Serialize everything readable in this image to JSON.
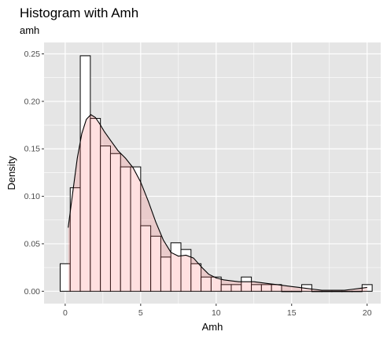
{
  "chart_data": {
    "type": "bar",
    "title": "Histogram with Amh",
    "subtitle": "amh",
    "xlabel": "Amh",
    "ylabel": "Density",
    "xlim": [
      -1.4,
      20.9
    ],
    "ylim": [
      -0.013,
      0.262
    ],
    "x_ticks": [
      "0",
      "5",
      "10",
      "15",
      "20"
    ],
    "x_tick_values": [
      0,
      5,
      10,
      15,
      20
    ],
    "y_ticks": [
      "0.00",
      "0.05",
      "0.10",
      "0.15",
      "0.20",
      "0.25"
    ],
    "y_tick_values": [
      0,
      0.05,
      0.1,
      0.15,
      0.2,
      0.25
    ],
    "grid": true,
    "bin_width": 0.667,
    "histogram": {
      "bin_centers": [
        0,
        0.667,
        1.333,
        2,
        2.667,
        3.333,
        4,
        4.667,
        5.333,
        6,
        6.667,
        7.333,
        8,
        8.667,
        9.333,
        10,
        10.667,
        11.333,
        12,
        12.667,
        13.333,
        14,
        14.667,
        15.333,
        16,
        16.667,
        17.333,
        18,
        18.667,
        19.333,
        20
      ],
      "density": [
        0.029,
        0.109,
        0.248,
        0.182,
        0.153,
        0.145,
        0.131,
        0.131,
        0.069,
        0.058,
        0.036,
        0.051,
        0.044,
        0.029,
        0.015,
        0.015,
        0.007,
        0.007,
        0.015,
        0.007,
        0.007,
        0.007,
        0.0,
        0.0,
        0.007,
        0.0,
        0.0,
        0.0,
        0.0,
        0.0,
        0.007
      ]
    },
    "density_curve": {
      "x": [
        0.2,
        0.5,
        0.8,
        1.1,
        1.4,
        1.7,
        2.0,
        2.3,
        2.6,
        3.0,
        3.5,
        4.0,
        4.5,
        5.0,
        5.5,
        6.0,
        6.5,
        7.0,
        7.5,
        8.0,
        8.5,
        9.0,
        9.5,
        10.0,
        10.5,
        11.0,
        11.5,
        12.0,
        12.5,
        13.0,
        13.5,
        14.0,
        14.5,
        15.0,
        15.5,
        16.0,
        16.5,
        17.0,
        17.5,
        18.0,
        18.5,
        19.0,
        19.5,
        20.0
      ],
      "y": [
        0.067,
        0.104,
        0.14,
        0.166,
        0.181,
        0.186,
        0.183,
        0.176,
        0.168,
        0.159,
        0.148,
        0.14,
        0.13,
        0.115,
        0.095,
        0.073,
        0.054,
        0.041,
        0.037,
        0.038,
        0.035,
        0.026,
        0.018,
        0.014,
        0.012,
        0.011,
        0.01,
        0.01,
        0.01,
        0.009,
        0.008,
        0.007,
        0.006,
        0.005,
        0.004,
        0.003,
        0.002,
        0.001,
        0.001,
        0.001,
        0.001,
        0.002,
        0.003,
        0.004
      ]
    },
    "colors": {
      "panel_background": "#e5e5e5",
      "grid_major": "#ffffff",
      "bar_fill": "#ffffff",
      "bar_outline": "#000000",
      "density_fill": "#ff6666",
      "density_fill_opacity": 0.2,
      "density_line": "#000000"
    }
  }
}
